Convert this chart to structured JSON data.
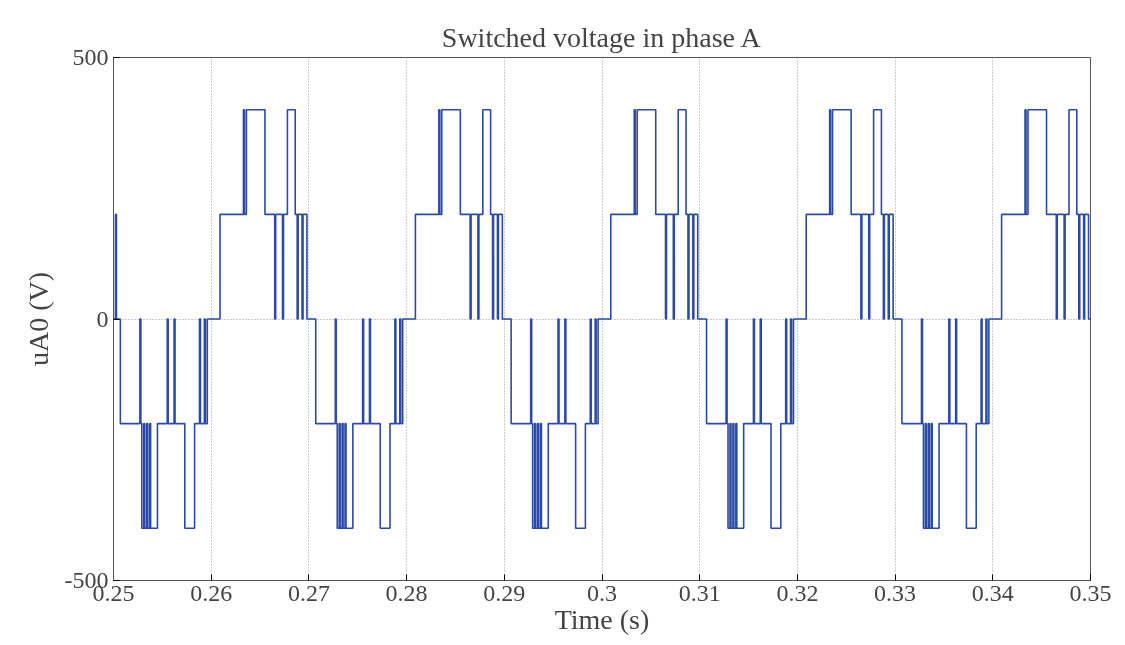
{
  "chart_data": {
    "type": "step",
    "title": "Switched voltage in phase A",
    "xlabel": "Time (s)",
    "ylabel": "uA0 (V)",
    "xlim": [
      0.25,
      0.35
    ],
    "ylim": [
      -500,
      500
    ],
    "xticks": [
      0.25,
      0.26,
      0.27,
      0.28,
      0.29,
      0.3,
      0.31,
      0.32,
      0.33,
      0.34,
      0.35
    ],
    "yticks": [
      -500,
      0,
      500
    ],
    "grid": true,
    "line_style": "solid",
    "marker": "none",
    "series": [
      {
        "color": "#2b4aa8",
        "x": [
          0.25,
          0.2502,
          0.2503,
          0.2507,
          0.2527,
          0.2528,
          0.2529,
          0.2531,
          0.2532,
          0.2534,
          0.2535,
          0.2537,
          0.2538,
          0.2545,
          0.2555,
          0.2556,
          0.2562,
          0.2563,
          0.2573,
          0.2583,
          0.2588,
          0.2589,
          0.2593,
          0.2594,
          0.2596,
          0.2609,
          0.2633,
          0.2634,
          0.2636,
          0.2655,
          0.2665,
          0.2666,
          0.2673,
          0.2674,
          0.2678,
          0.2686,
          0.2688,
          0.2689,
          0.2693,
          0.2694,
          0.2698,
          0.27,
          0.2707,
          0.2727,
          0.2728,
          0.2729,
          0.2731,
          0.2732,
          0.2734,
          0.2735,
          0.2737,
          0.2738,
          0.2745,
          0.2755,
          0.2756,
          0.2762,
          0.2763,
          0.2773,
          0.2783,
          0.2788,
          0.2789,
          0.2793,
          0.2794,
          0.2796,
          0.2809,
          0.2833,
          0.2834,
          0.2836,
          0.2855,
          0.2865,
          0.2866,
          0.2873,
          0.2874,
          0.2878,
          0.2886,
          0.2888,
          0.2889,
          0.2893,
          0.2894,
          0.2898,
          0.29,
          0.2907,
          0.2927,
          0.2928,
          0.2929,
          0.2931,
          0.2932,
          0.2934,
          0.2935,
          0.2937,
          0.2938,
          0.2945,
          0.2955,
          0.2956,
          0.2962,
          0.2963,
          0.2973,
          0.2983,
          0.2988,
          0.2989,
          0.2993,
          0.2994,
          0.2996,
          0.3009,
          0.3033,
          0.3034,
          0.3036,
          0.3055,
          0.3065,
          0.3066,
          0.3073,
          0.3074,
          0.3078,
          0.3086,
          0.3088,
          0.3089,
          0.3093,
          0.3094,
          0.3098,
          0.31,
          0.3107,
          0.3127,
          0.3128,
          0.3129,
          0.3131,
          0.3132,
          0.3134,
          0.3135,
          0.3137,
          0.3138,
          0.3145,
          0.3155,
          0.3156,
          0.3162,
          0.3163,
          0.3173,
          0.3183,
          0.3188,
          0.3189,
          0.3193,
          0.3194,
          0.3196,
          0.3209,
          0.3233,
          0.3234,
          0.3236,
          0.3255,
          0.3265,
          0.3266,
          0.3273,
          0.3274,
          0.3278,
          0.3286,
          0.3288,
          0.3289,
          0.3293,
          0.3294,
          0.3298,
          0.33,
          0.3307,
          0.3327,
          0.3328,
          0.3329,
          0.3331,
          0.3332,
          0.3334,
          0.3335,
          0.3337,
          0.3338,
          0.3345,
          0.3355,
          0.3356,
          0.3362,
          0.3363,
          0.3373,
          0.3383,
          0.3388,
          0.3389,
          0.3393,
          0.3394,
          0.3396,
          0.3409,
          0.3433,
          0.3434,
          0.3436,
          0.3455,
          0.3465,
          0.3466,
          0.3473,
          0.3474,
          0.3478,
          0.3486,
          0.3488,
          0.3489,
          0.3493,
          0.3494,
          0.3498,
          0.35
        ],
        "values": [
          0,
          200,
          0,
          -200,
          0,
          -200,
          -400,
          -200,
          -400,
          -200,
          -400,
          -200,
          -400,
          -200,
          0,
          -200,
          0,
          -200,
          -400,
          -200,
          0,
          -200,
          0,
          -200,
          0,
          200,
          400,
          200,
          400,
          200,
          0,
          200,
          0,
          200,
          400,
          200,
          0,
          200,
          0,
          200,
          0,
          0,
          -200,
          0,
          -200,
          -400,
          -200,
          -400,
          -200,
          -400,
          -200,
          -400,
          -200,
          0,
          -200,
          0,
          -200,
          -400,
          -200,
          0,
          -200,
          0,
          -200,
          0,
          200,
          400,
          200,
          400,
          200,
          0,
          200,
          0,
          200,
          400,
          200,
          0,
          200,
          0,
          200,
          0,
          0,
          -200,
          0,
          -200,
          -400,
          -200,
          -400,
          -200,
          -400,
          -200,
          -400,
          -200,
          0,
          -200,
          0,
          -200,
          -400,
          -200,
          0,
          -200,
          0,
          -200,
          0,
          200,
          400,
          200,
          400,
          200,
          0,
          200,
          0,
          200,
          400,
          200,
          0,
          200,
          0,
          200,
          0,
          0,
          -200,
          0,
          -200,
          -400,
          -200,
          -400,
          -200,
          -400,
          -200,
          -400,
          -200,
          0,
          -200,
          0,
          -200,
          -400,
          -200,
          0,
          -200,
          0,
          -200,
          0,
          200,
          400,
          200,
          400,
          200,
          0,
          200,
          0,
          200,
          400,
          200,
          0,
          200,
          0,
          200,
          0,
          0,
          -200,
          0,
          -200,
          -400,
          -200,
          -400,
          -200,
          -400,
          -200,
          -400,
          -200,
          0,
          -200,
          0,
          -200,
          -400,
          -200,
          0,
          -200,
          0,
          -200,
          0,
          200,
          400,
          200,
          400,
          200,
          0,
          200,
          0,
          200,
          400,
          200,
          0,
          200,
          0,
          200,
          0,
          0
        ]
      }
    ]
  }
}
